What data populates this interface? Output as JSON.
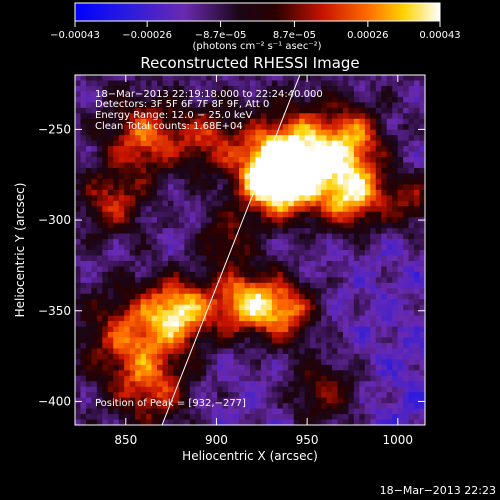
{
  "chart_data": {
    "type": "heatmap",
    "title": "Reconstructed RHESSI Image",
    "xlabel": "Heliocentric X (arcsec)",
    "ylabel": "Heliocentric Y (arcsec)",
    "xlim": [
      822,
      1015
    ],
    "ylim": [
      -413,
      -220
    ],
    "x_ticks": [
      850,
      900,
      950,
      1000
    ],
    "y_ticks": [
      -250,
      -300,
      -350,
      -400
    ],
    "x_tick_labels": [
      "850",
      "900",
      "950",
      "1000"
    ],
    "y_tick_labels": [
      "−250",
      "−300",
      "−350",
      "−400"
    ],
    "colorbar": {
      "min": -0.00043,
      "max": 0.00043,
      "ticks": [
        -0.00043,
        -0.00026,
        -8.7e-05,
        8.7e-05,
        0.00026,
        0.00043
      ],
      "tick_labels": [
        "−0.00043",
        "−0.00026",
        "−8.7e−05",
        "8.7e−05",
        "0.00026",
        "0.00043"
      ],
      "unit": "(photons cm⁻² s⁻¹ asec⁻²)"
    },
    "annotations": [
      "18−Mar−2013 22:19:18.000 to 22:24:40.000",
      "Detectors: 3F 5F 6F 7F 8F 9F, Att 0",
      "Energy Range: 12.0 − 25.0 keV",
      "Clean   Total counts: 1.68E+04",
      "Position of Peak = [932,−277]"
    ],
    "peak_position": [
      932,
      -277
    ],
    "sources": [
      {
        "x": 932,
        "y": -277,
        "amp": 1.0,
        "width": 14
      },
      {
        "x": 945,
        "y": -265,
        "amp": 0.8,
        "width": 18
      },
      {
        "x": 975,
        "y": -285,
        "amp": 0.8,
        "width": 13
      },
      {
        "x": 975,
        "y": -255,
        "amp": 0.55,
        "width": 12
      },
      {
        "x": 915,
        "y": -345,
        "amp": 0.75,
        "width": 13
      },
      {
        "x": 938,
        "y": -350,
        "amp": 0.65,
        "width": 12
      },
      {
        "x": 880,
        "y": -350,
        "amp": 0.75,
        "width": 12
      },
      {
        "x": 855,
        "y": -365,
        "amp": 0.6,
        "width": 18
      },
      {
        "x": 860,
        "y": -255,
        "amp": 0.6,
        "width": 14
      },
      {
        "x": 895,
        "y": -255,
        "amp": 0.45,
        "width": 12
      },
      {
        "x": 843,
        "y": -290,
        "amp": 0.45,
        "width": 12
      },
      {
        "x": 865,
        "y": -395,
        "amp": 0.45,
        "width": 14
      },
      {
        "x": 960,
        "y": -395,
        "amp": 0.45,
        "width": 14
      },
      {
        "x": 1008,
        "y": -290,
        "amp": 0.4,
        "width": 10
      },
      {
        "x": 905,
        "y": -310,
        "amp": 0.35,
        "width": 10
      }
    ],
    "limb_line": [
      [
        870,
        -413
      ],
      [
        946,
        -220
      ]
    ]
  },
  "footer_date": "18−Mar−2013 22:23"
}
